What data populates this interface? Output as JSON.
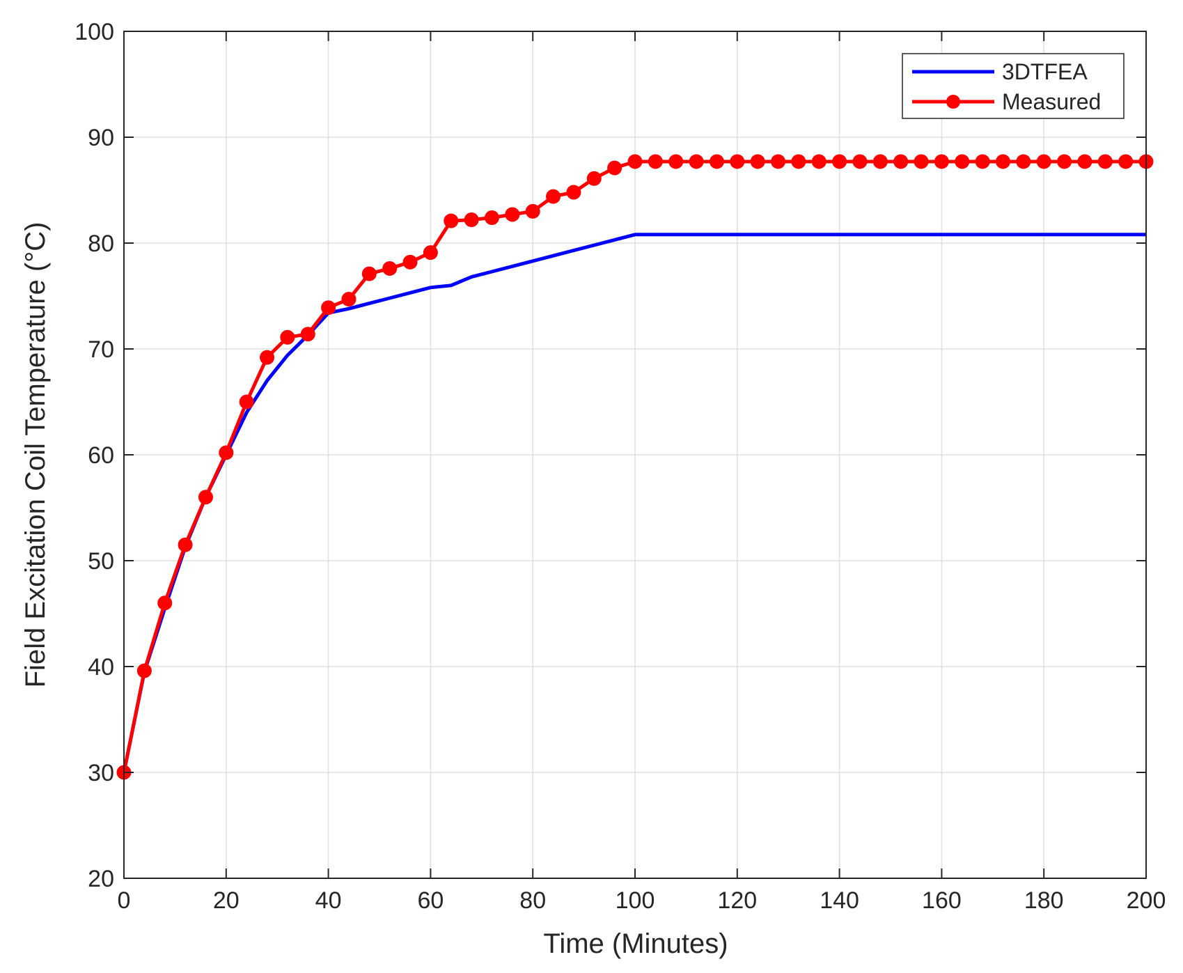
{
  "chart_data": {
    "type": "line",
    "title": "",
    "xlabel": "Time (Minutes)",
    "ylabel": "Field Excitation Coil Temperature (°C)",
    "xlim": [
      0,
      200
    ],
    "ylim": [
      20,
      100
    ],
    "xticks": [
      0,
      20,
      40,
      60,
      80,
      100,
      120,
      140,
      160,
      180,
      200
    ],
    "yticks": [
      20,
      30,
      40,
      50,
      60,
      70,
      80,
      90,
      100
    ],
    "grid": true,
    "legend_position": "top-right",
    "series": [
      {
        "name": "3DTFEA",
        "color": "#0000ff",
        "marker": "none",
        "x": [
          0,
          4,
          8,
          12,
          16,
          20,
          24,
          28,
          32,
          36,
          40,
          44,
          48,
          52,
          56,
          60,
          64,
          68,
          72,
          76,
          80,
          84,
          88,
          92,
          96,
          100,
          200
        ],
        "y": [
          30,
          39.5,
          45.5,
          51.3,
          56,
          60,
          64,
          67,
          69.4,
          71.3,
          73.4,
          73.8,
          74.3,
          74.8,
          75.3,
          75.8,
          76,
          76.8,
          77.3,
          77.8,
          78.3,
          78.8,
          79.3,
          79.8,
          80.3,
          80.8,
          80.8
        ]
      },
      {
        "name": "Measured",
        "color": "#ff0000",
        "marker": "circle",
        "x": [
          0,
          4,
          8,
          12,
          16,
          20,
          24,
          28,
          32,
          36,
          40,
          44,
          48,
          52,
          56,
          60,
          64,
          68,
          72,
          76,
          80,
          84,
          88,
          92,
          96,
          100,
          104,
          108,
          112,
          116,
          120,
          124,
          128,
          132,
          136,
          140,
          144,
          148,
          152,
          156,
          160,
          164,
          168,
          172,
          176,
          180,
          184,
          188,
          192,
          196,
          200
        ],
        "y": [
          30,
          39.6,
          46,
          51.5,
          56,
          60.2,
          65,
          69.2,
          71.1,
          71.4,
          73.9,
          74.7,
          77.1,
          77.6,
          78.2,
          79.1,
          82.1,
          82.2,
          82.4,
          82.7,
          83,
          84.4,
          84.8,
          86.1,
          87.1,
          87.7,
          87.7,
          87.7,
          87.7,
          87.7,
          87.7,
          87.7,
          87.7,
          87.7,
          87.7,
          87.7,
          87.7,
          87.7,
          87.7,
          87.7,
          87.7,
          87.7,
          87.7,
          87.7,
          87.7,
          87.7,
          87.7,
          87.7,
          87.7,
          87.7,
          87.7
        ]
      }
    ]
  }
}
